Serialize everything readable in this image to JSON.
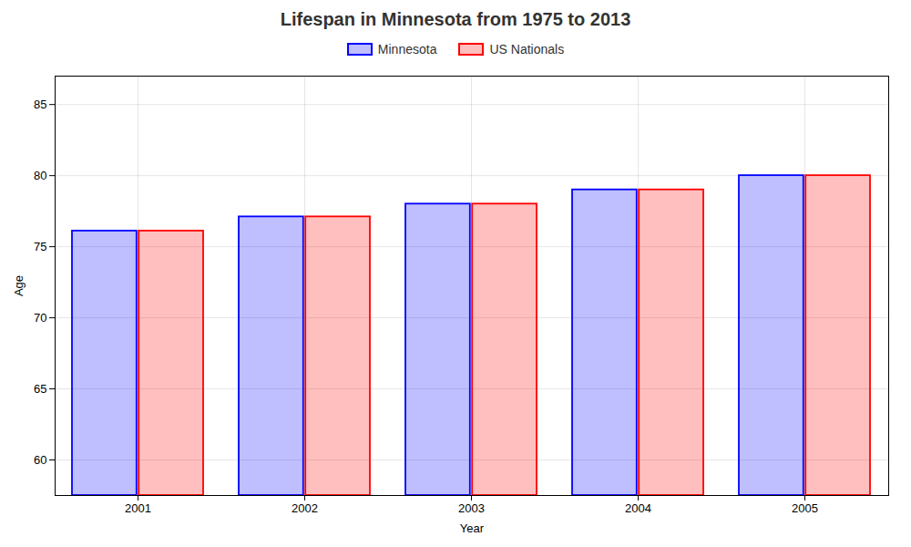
{
  "chart_data": {
    "type": "bar",
    "title": "Lifespan in Minnesota from 1975 to 2013",
    "x_label": "Year",
    "y_label": "Age",
    "categories": [
      "2001",
      "2002",
      "2003",
      "2004",
      "2005"
    ],
    "series": [
      {
        "name": "Minnesota",
        "color": "#0000ff",
        "values": [
          76.1,
          77.1,
          78.0,
          79.0,
          80.0
        ]
      },
      {
        "name": "US Nationals",
        "color": "#ff0000",
        "values": [
          76.1,
          77.1,
          78.0,
          79.0,
          80.0
        ]
      }
    ],
    "ylim": [
      57.5,
      87
    ],
    "yticks": [
      60,
      65,
      70,
      75,
      80,
      85
    ],
    "grid": true,
    "legend": "top"
  }
}
